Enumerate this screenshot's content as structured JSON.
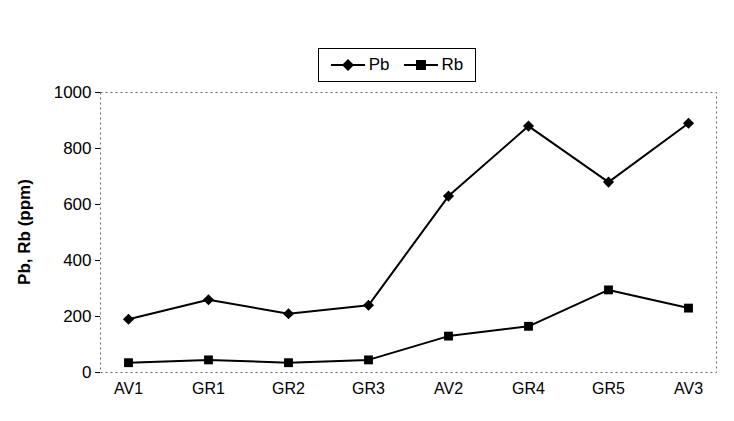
{
  "chart_data": {
    "type": "line",
    "y_label": "Pb, Rb (ppm)",
    "categories": [
      "AV1",
      "GR1",
      "GR2",
      "GR3",
      "AV2",
      "GR4",
      "GR5",
      "AV3"
    ],
    "series": [
      {
        "name": "Pb",
        "color": "#000000",
        "marker": "diamond",
        "values": [
          190,
          260,
          210,
          240,
          630,
          880,
          680,
          890
        ]
      },
      {
        "name": "Rb",
        "color": "#000000",
        "marker": "square",
        "values": [
          35,
          45,
          35,
          45,
          130,
          165,
          295,
          230
        ]
      }
    ],
    "ylim": [
      0,
      1000
    ],
    "yticks": [
      0,
      200,
      400,
      600,
      800,
      1000
    ],
    "legend": "top",
    "grid": false
  }
}
